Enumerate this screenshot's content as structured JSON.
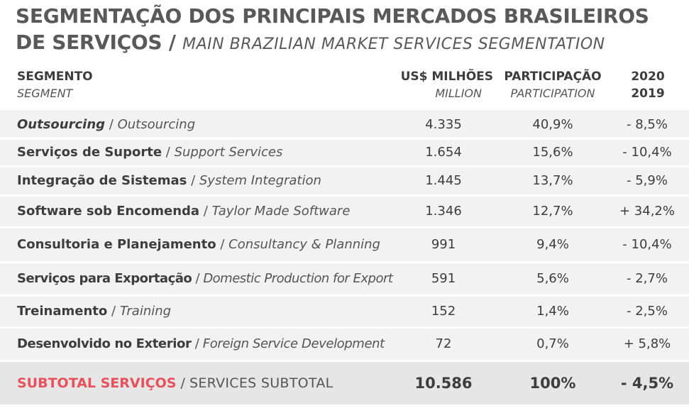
{
  "title": {
    "line1": "SEGMENTAÇÃO DOS PRINCIPAIS MERCADOS BRASILEIROS",
    "line2_pt": "DE SERVIÇOS",
    "separator": "/",
    "line2_en": "MAIN BRAZILIAN MARKET SERVICES SEGMENTATION"
  },
  "header": {
    "segment_pt": "SEGMENTO",
    "segment_en": "SEGMENT",
    "million_pt": "US$ MILHÕES",
    "million_en": "MILLION",
    "participation_pt": "PARTICIPAÇÃO",
    "participation_en": "PARTICIPATION",
    "year_top": "2020",
    "year_bottom": "2019"
  },
  "rows": [
    {
      "pt": "Outsourcing",
      "en": "Outsourcing",
      "million": "4.335",
      "participation": "40,9%",
      "change": "- 8,5%"
    },
    {
      "pt": "Serviços de Suporte",
      "en": "Support Services",
      "million": "1.654",
      "participation": "15,6%",
      "change": "- 10,4%"
    },
    {
      "pt": "Integração de Sistemas",
      "en": "System Integration",
      "million": "1.445",
      "participation": "13,7%",
      "change": "- 5,9%"
    },
    {
      "pt": "Software sob Encomenda",
      "en": "Taylor Made Software",
      "million": "1.346",
      "participation": "12,7%",
      "change": "+ 34,2%"
    },
    {
      "pt": "Consultoria e Planejamento",
      "en": "Consultancy & Planning",
      "million": "991",
      "participation": "9,4%",
      "change": "- 10,4%"
    },
    {
      "pt": "Serviços para Exportação",
      "en": "Domestic Production for Export",
      "million": "591",
      "participation": "5,6%",
      "change": "- 2,7%"
    },
    {
      "pt": "Treinamento",
      "en": "Training",
      "million": "152",
      "participation": "1,4%",
      "change": "- 2,5%"
    },
    {
      "pt": "Desenvolvido no Exterior",
      "en": "Foreign Service Development",
      "million": "72",
      "participation": "0,7%",
      "change": "+ 5,8%"
    }
  ],
  "subtotal": {
    "pt": "SUBTOTAL SERVIÇOS",
    "en": "SERVICES SUBTOTAL",
    "million": "10.586",
    "participation": "100%",
    "change": "- 4,5%"
  },
  "slash": "/",
  "colors": {
    "accent": "#e8505b",
    "row_bg": "#f2f2f2",
    "subtotal_bg": "#e6e6e6",
    "title": "#595959"
  }
}
